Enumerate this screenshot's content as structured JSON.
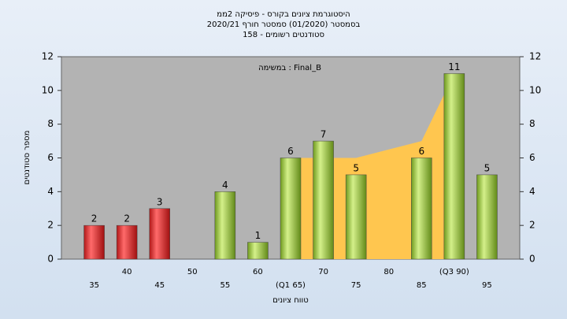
{
  "chart_data": {
    "type": "bar",
    "title": [
      "היסטוגרמת ציונים בקורס - פיסיקה 2ממ",
      "בסמסטר  (01/2020)  סמסטר חורף  2020/21",
      "סטודנטים רשומים - 158"
    ],
    "annotation": "במשימה : Final_B",
    "x_label": "טווח ציונים",
    "y_label": "מספר סטודנטים",
    "categories": [
      "35",
      "40",
      "45",
      "50",
      "55",
      "60",
      "(Q1 65)",
      "70",
      "75",
      "80",
      "85",
      "(Q3 90)",
      "95"
    ],
    "values": [
      2,
      2,
      3,
      0,
      4,
      1,
      6,
      7,
      5,
      0,
      6,
      11,
      5
    ],
    "colors": [
      "red",
      "red",
      "red",
      "green",
      "green",
      "green",
      "green",
      "green",
      "green",
      "green",
      "green",
      "green",
      "green"
    ],
    "area": {
      "color": "#ffc64f",
      "values": [
        null,
        null,
        null,
        null,
        null,
        null,
        6,
        6,
        6,
        6.5,
        7,
        11,
        null
      ]
    },
    "ylim": [
      0,
      12
    ],
    "yticks": [
      0,
      2,
      4,
      6,
      8,
      10,
      12
    ]
  }
}
